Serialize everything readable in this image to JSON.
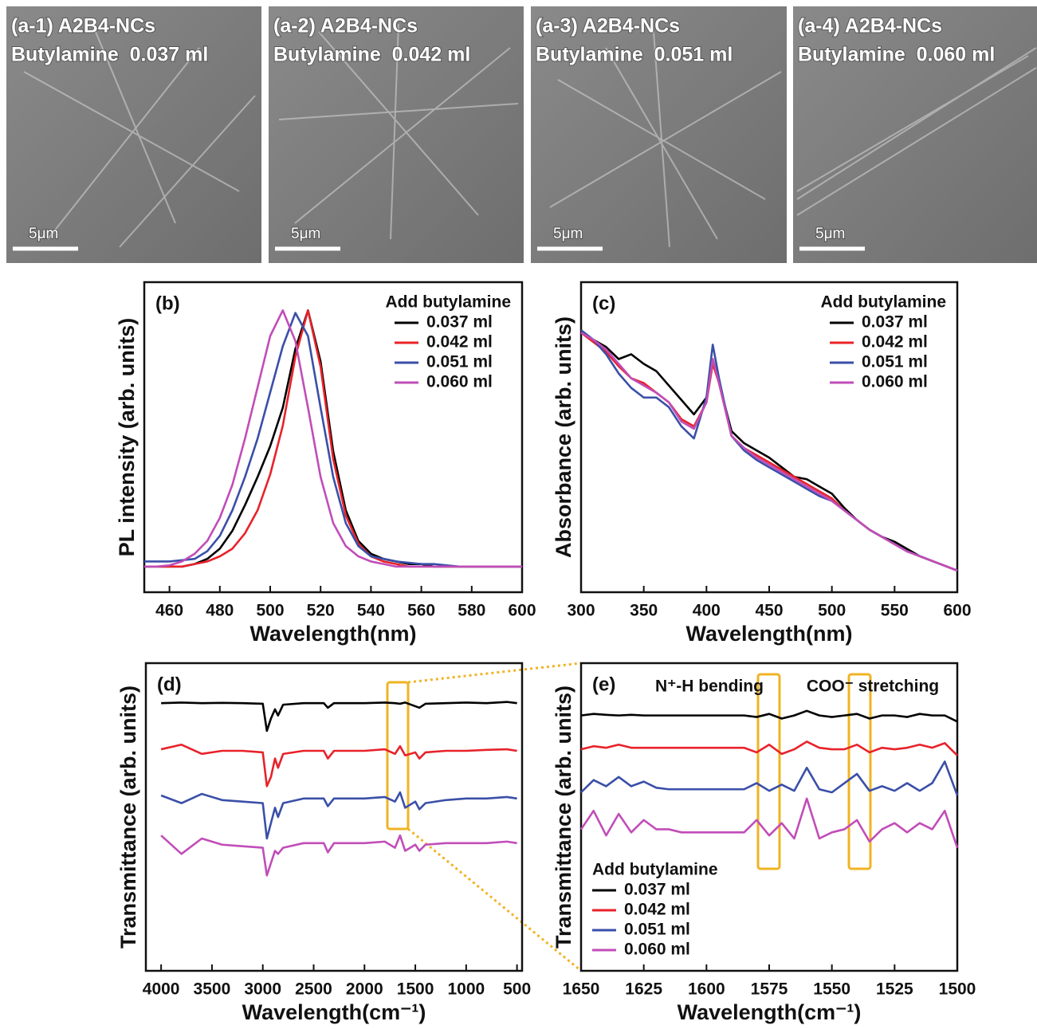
{
  "images": [
    {
      "title": "(a-1) A2B4-NCs",
      "subtitle": "Butylamine  0.037 ml",
      "scale_bar": "5μm"
    },
    {
      "title": "(a-2) A2B4-NCs",
      "subtitle": "Butylamine  0.042 ml",
      "scale_bar": "5μm"
    },
    {
      "title": "(a-3) A2B4-NCs",
      "subtitle": "Butylamine  0.051 ml",
      "scale_bar": "5μm"
    },
    {
      "title": "(a-4) A2B4-NCs",
      "subtitle": "Butylamine  0.060 ml",
      "scale_bar": "5μm"
    }
  ],
  "chart_data": [
    {
      "type": "line",
      "label": "(b)",
      "xlabel": "Wavelength(nm)",
      "ylabel": "PL intensity (arb. units)",
      "legend": "upper right",
      "legend_title": "Add butylamine",
      "xlim": [
        450,
        600
      ],
      "xticks": [
        460,
        480,
        500,
        520,
        540,
        560,
        580,
        600
      ],
      "ylim": [
        -0.1,
        1.11
      ],
      "x": [
        450,
        455,
        460,
        465,
        470,
        475,
        480,
        485,
        490,
        495,
        500,
        505,
        510,
        515,
        520,
        525,
        530,
        535,
        540,
        545,
        550,
        555,
        560,
        565,
        570,
        575,
        580,
        585,
        590,
        595,
        600
      ],
      "series": [
        {
          "name": "0.037 ml",
          "color": "#000000",
          "values": [
            0,
            0,
            0,
            0,
            0.01,
            0.03,
            0.07,
            0.14,
            0.24,
            0.35,
            0.47,
            0.62,
            0.85,
            1.0,
            0.8,
            0.45,
            0.22,
            0.1,
            0.05,
            0.03,
            0.02,
            0.01,
            0.01,
            0,
            0,
            0,
            0,
            0,
            0,
            0,
            0
          ]
        },
        {
          "name": "0.042 ml",
          "color": "#e8222a",
          "values": [
            0,
            0,
            0,
            0,
            0.01,
            0.02,
            0.04,
            0.07,
            0.13,
            0.22,
            0.36,
            0.55,
            0.82,
            1.0,
            0.78,
            0.42,
            0.2,
            0.09,
            0.04,
            0.02,
            0.01,
            0,
            0,
            0,
            0,
            0,
            0,
            0,
            0,
            0,
            0
          ]
        },
        {
          "name": "0.051 ml",
          "color": "#3a4fa8",
          "values": [
            0.02,
            0.02,
            0.02,
            0.025,
            0.03,
            0.06,
            0.12,
            0.22,
            0.35,
            0.5,
            0.68,
            0.86,
            0.99,
            0.9,
            0.62,
            0.35,
            0.17,
            0.08,
            0.04,
            0.03,
            0.02,
            0.015,
            0.01,
            0.01,
            0.005,
            0,
            0,
            0,
            0,
            0,
            0
          ]
        },
        {
          "name": "0.060 ml",
          "color": "#c14db8",
          "values": [
            0,
            0,
            0.005,
            0.02,
            0.05,
            0.1,
            0.19,
            0.32,
            0.5,
            0.7,
            0.9,
            1.0,
            0.88,
            0.62,
            0.35,
            0.17,
            0.08,
            0.04,
            0.02,
            0.01,
            0,
            0,
            0,
            0,
            0,
            0,
            0,
            0,
            0,
            0,
            0
          ]
        }
      ]
    },
    {
      "type": "line",
      "label": "(c)",
      "xlabel": "Wavelength(nm)",
      "ylabel": "Absorbance (arb. units)",
      "legend": "upper right",
      "legend_title": "Add butylamine",
      "xlim": [
        300,
        600
      ],
      "xticks": [
        300,
        350,
        400,
        450,
        500,
        550,
        600
      ],
      "ylim": [
        -0.09,
        1.2
      ],
      "x": [
        300,
        310,
        320,
        330,
        340,
        350,
        360,
        370,
        380,
        390,
        400,
        405,
        410,
        420,
        430,
        440,
        450,
        460,
        470,
        480,
        490,
        500,
        510,
        520,
        530,
        540,
        550,
        560,
        570,
        580,
        590,
        600
      ],
      "series": [
        {
          "name": "0.037 ml",
          "color": "#000000",
          "values": [
            0.99,
            0.96,
            0.93,
            0.88,
            0.9,
            0.86,
            0.83,
            0.77,
            0.71,
            0.65,
            0.72,
            0.88,
            0.78,
            0.58,
            0.53,
            0.5,
            0.47,
            0.43,
            0.39,
            0.38,
            0.35,
            0.32,
            0.26,
            0.21,
            0.17,
            0.14,
            0.12,
            0.09,
            0.06,
            0.04,
            0.02,
            0
          ]
        },
        {
          "name": "0.042 ml",
          "color": "#e8222a",
          "values": [
            0.99,
            0.95,
            0.91,
            0.85,
            0.8,
            0.78,
            0.74,
            0.7,
            0.63,
            0.6,
            0.7,
            0.86,
            0.78,
            0.56,
            0.51,
            0.48,
            0.45,
            0.42,
            0.39,
            0.36,
            0.33,
            0.3,
            0.25,
            0.21,
            0.17,
            0.14,
            0.11,
            0.08,
            0.06,
            0.04,
            0.02,
            0
          ]
        },
        {
          "name": "0.051 ml",
          "color": "#3a4fa8",
          "values": [
            1.0,
            0.96,
            0.9,
            0.82,
            0.76,
            0.72,
            0.72,
            0.68,
            0.6,
            0.55,
            0.72,
            0.94,
            0.8,
            0.56,
            0.5,
            0.46,
            0.43,
            0.4,
            0.37,
            0.34,
            0.31,
            0.29,
            0.25,
            0.21,
            0.17,
            0.14,
            0.11,
            0.08,
            0.06,
            0.04,
            0.02,
            0
          ]
        },
        {
          "name": "0.060 ml",
          "color": "#c14db8",
          "values": [
            0.99,
            0.96,
            0.92,
            0.86,
            0.8,
            0.77,
            0.74,
            0.7,
            0.62,
            0.59,
            0.7,
            0.88,
            0.78,
            0.56,
            0.51,
            0.47,
            0.44,
            0.41,
            0.38,
            0.35,
            0.32,
            0.29,
            0.25,
            0.21,
            0.17,
            0.14,
            0.11,
            0.08,
            0.06,
            0.04,
            0.02,
            0
          ]
        }
      ]
    },
    {
      "type": "line",
      "label": "(d)",
      "xlabel": "Wavelength(cm⁻¹)",
      "ylabel": "Transmittance (arb. units)",
      "xlim": [
        4150,
        450
      ],
      "xticks": [
        4000,
        3500,
        3000,
        2500,
        2000,
        1500,
        1000,
        500
      ],
      "ylim": [
        0,
        10
      ],
      "x": [
        4000,
        3800,
        3600,
        3400,
        3200,
        3000,
        2960,
        2920,
        2880,
        2850,
        2800,
        2600,
        2400,
        2360,
        2300,
        2000,
        1800,
        1700,
        1650,
        1600,
        1500,
        1460,
        1400,
        1200,
        1000,
        800,
        600,
        500
      ],
      "series": [
        {
          "name": "0.037 ml",
          "color": "#000000",
          "values": [
            8.7,
            8.72,
            8.7,
            8.71,
            8.7,
            8.68,
            7.8,
            8.2,
            8.5,
            8.3,
            8.65,
            8.7,
            8.7,
            8.55,
            8.7,
            8.7,
            8.72,
            8.7,
            8.68,
            8.72,
            8.6,
            8.55,
            8.68,
            8.7,
            8.72,
            8.7,
            8.74,
            8.7
          ]
        },
        {
          "name": "0.042 ml",
          "color": "#e8222a",
          "values": [
            7.2,
            7.35,
            7.05,
            7.15,
            7.15,
            7.1,
            6.0,
            6.3,
            6.9,
            6.6,
            7.05,
            7.15,
            7.15,
            6.9,
            7.15,
            7.15,
            7.2,
            7.05,
            7.3,
            7.0,
            7.1,
            6.9,
            7.1,
            7.15,
            7.15,
            7.18,
            7.2,
            7.15
          ]
        },
        {
          "name": "0.051 ml",
          "color": "#3a4fa8",
          "values": [
            5.7,
            5.45,
            5.75,
            5.55,
            5.5,
            5.45,
            4.3,
            4.8,
            5.3,
            5.0,
            5.45,
            5.6,
            5.6,
            5.35,
            5.6,
            5.6,
            5.65,
            5.5,
            5.8,
            5.3,
            5.5,
            5.25,
            5.45,
            5.55,
            5.6,
            5.6,
            5.65,
            5.6
          ]
        },
        {
          "name": "0.060 ml",
          "color": "#c14db8",
          "values": [
            4.4,
            3.8,
            4.3,
            4.1,
            4.05,
            4.0,
            3.1,
            3.5,
            3.9,
            3.8,
            4.0,
            4.15,
            4.15,
            3.85,
            4.15,
            4.15,
            4.2,
            4.0,
            4.4,
            3.9,
            4.1,
            3.9,
            4.1,
            4.15,
            4.15,
            4.15,
            4.2,
            4.15
          ]
        }
      ]
    },
    {
      "type": "line",
      "label": "(e)",
      "xlabel": "Wavelength(cm⁻¹)",
      "ylabel": "Transmittance (arb. units)",
      "legend": "lower left",
      "legend_title": "Add butylamine",
      "annotations": [
        "N⁺-H bending",
        "COO⁻ stretching"
      ],
      "xlim": [
        1650,
        1500
      ],
      "xticks": [
        1650,
        1625,
        1600,
        1575,
        1550,
        1525,
        1500
      ],
      "ylim": [
        0,
        10
      ],
      "x": [
        1650,
        1645,
        1640,
        1635,
        1630,
        1625,
        1620,
        1615,
        1610,
        1605,
        1600,
        1595,
        1590,
        1585,
        1580,
        1575,
        1570,
        1565,
        1560,
        1555,
        1550,
        1545,
        1540,
        1535,
        1530,
        1525,
        1520,
        1515,
        1510,
        1505,
        1500
      ],
      "series": [
        {
          "name": "0.037 ml",
          "color": "#000000",
          "values": [
            8.3,
            8.35,
            8.32,
            8.3,
            8.32,
            8.3,
            8.3,
            8.3,
            8.3,
            8.3,
            8.3,
            8.3,
            8.3,
            8.3,
            8.25,
            8.35,
            8.2,
            8.3,
            8.45,
            8.3,
            8.25,
            8.3,
            8.35,
            8.2,
            8.3,
            8.3,
            8.25,
            8.35,
            8.3,
            8.3,
            8.1
          ]
        },
        {
          "name": "0.042 ml",
          "color": "#e8222a",
          "values": [
            7.2,
            7.3,
            7.25,
            7.35,
            7.25,
            7.25,
            7.25,
            7.25,
            7.25,
            7.25,
            7.25,
            7.25,
            7.25,
            7.25,
            7.1,
            7.35,
            7.05,
            7.2,
            7.45,
            7.25,
            7.2,
            7.2,
            7.35,
            7.1,
            7.25,
            7.2,
            7.25,
            7.35,
            7.25,
            7.4,
            7.0
          ]
        },
        {
          "name": "0.051 ml",
          "color": "#3a4fa8",
          "values": [
            5.8,
            6.2,
            6.0,
            6.3,
            6.0,
            6.15,
            5.95,
            5.9,
            5.9,
            5.9,
            5.9,
            5.9,
            5.9,
            5.9,
            6.1,
            5.85,
            6.05,
            5.85,
            6.6,
            5.9,
            5.8,
            6.1,
            6.4,
            5.85,
            6.0,
            5.85,
            6.1,
            5.85,
            6.1,
            6.8,
            5.7
          ]
        },
        {
          "name": "0.060 ml",
          "color": "#c14db8",
          "values": [
            4.6,
            5.2,
            4.4,
            5.1,
            4.5,
            4.9,
            4.6,
            4.6,
            4.5,
            4.5,
            4.5,
            4.5,
            4.5,
            4.5,
            4.9,
            4.4,
            4.8,
            4.3,
            5.6,
            4.3,
            4.5,
            4.6,
            4.9,
            4.2,
            4.6,
            4.8,
            4.5,
            4.8,
            4.6,
            5.2,
            4.0
          ]
        }
      ]
    }
  ]
}
